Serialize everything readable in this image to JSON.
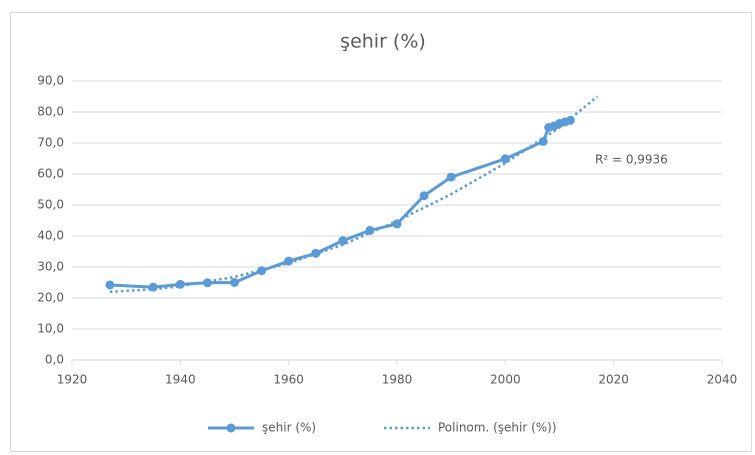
{
  "chart_data": {
    "type": "line",
    "title": "şehir (%)",
    "series": [
      {
        "name": "şehir (%)",
        "color": "#5b9bd5",
        "style": "solid-marker",
        "x": [
          1927,
          1935,
          1940,
          1945,
          1950,
          1955,
          1960,
          1965,
          1970,
          1975,
          1980,
          1985,
          1990,
          2000,
          2007,
          2008,
          2009,
          2010,
          2011,
          2012
        ],
        "values": [
          24.2,
          23.5,
          24.4,
          24.9,
          25.0,
          28.8,
          31.9,
          34.4,
          38.5,
          41.8,
          43.9,
          53.0,
          59.0,
          64.9,
          70.5,
          75.0,
          75.5,
          76.3,
          76.8,
          77.3
        ]
      },
      {
        "name": "Polinom. (şehir (%))",
        "color": "#5b9bd5",
        "style": "dotted",
        "x": [
          1927,
          1935,
          1940,
          1950,
          1960,
          1970,
          1980,
          1990,
          2000,
          2010,
          2017
        ],
        "values": [
          22.0,
          22.8,
          23.8,
          26.8,
          31.2,
          37.2,
          44.8,
          53.5,
          63.5,
          75.0,
          85.0
        ]
      }
    ],
    "annotation": "R² = 0,9936",
    "xlim": [
      1920,
      2040
    ],
    "xticks": [
      1920,
      1940,
      1960,
      1980,
      2000,
      2020,
      2040
    ],
    "ylim": [
      0,
      90
    ],
    "yticks": [
      {
        "value": 0,
        "label": "0,0"
      },
      {
        "value": 10,
        "label": "10,0"
      },
      {
        "value": 20,
        "label": "20,0"
      },
      {
        "value": 30,
        "label": "30,0"
      },
      {
        "value": 40,
        "label": "40,0"
      },
      {
        "value": 50,
        "label": "50,0"
      },
      {
        "value": 60,
        "label": "60,0"
      },
      {
        "value": 70,
        "label": "70,0"
      },
      {
        "value": 80,
        "label": "80,0"
      },
      {
        "value": 90,
        "label": "90,0"
      }
    ],
    "grid": true
  }
}
